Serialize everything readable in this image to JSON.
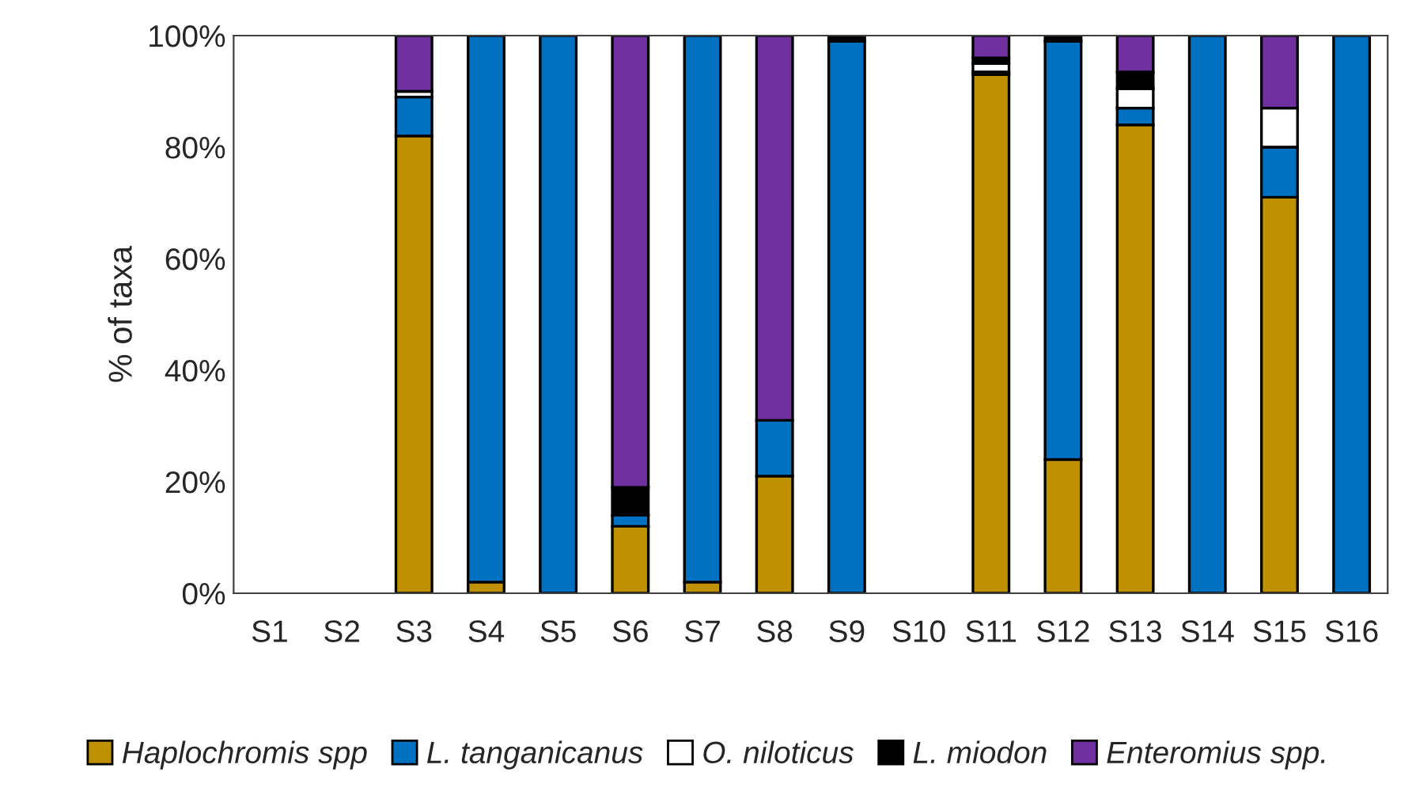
{
  "chart_data": {
    "type": "bar",
    "stacked": true,
    "ylabel": "% of taxa",
    "categories": [
      "S1",
      "S2",
      "S3",
      "S4",
      "S5",
      "S6",
      "S7",
      "S8",
      "S9",
      "S10",
      "S11",
      "S12",
      "S13",
      "S14",
      "S15",
      "S16"
    ],
    "series": [
      {
        "name": "Haplochromis spp",
        "color": "#bf9000",
        "values": [
          0,
          0,
          82,
          2,
          0,
          12,
          2,
          21,
          0,
          0,
          93,
          24,
          84,
          0,
          71,
          null
        ]
      },
      {
        "name": "L. tanganicanus",
        "color": "#0070c0",
        "values": [
          0,
          0,
          7,
          98,
          100,
          2,
          98,
          10,
          99,
          0,
          0.5,
          75,
          3,
          100,
          9,
          100
        ]
      },
      {
        "name": "O. niloticus",
        "color": "#ffffff",
        "values": [
          0,
          0,
          1,
          0,
          0,
          0,
          0,
          0,
          0,
          0,
          1.5,
          0,
          3.5,
          0,
          7,
          0
        ]
      },
      {
        "name": "L. miodon",
        "color": "#000000",
        "values": [
          0,
          0,
          null,
          0,
          0,
          5,
          0,
          null,
          1,
          0,
          1,
          1,
          3,
          0,
          0,
          0
        ]
      },
      {
        "name": "Enteromius spp.",
        "color": "#7030a0",
        "values": [
          0,
          0,
          10,
          0,
          0,
          81,
          0,
          69,
          0,
          0,
          4,
          0,
          6.5,
          0,
          13,
          0
        ]
      }
    ],
    "ylim": [
      0,
      100
    ],
    "yticks": [
      {
        "value": 0,
        "label": "0%"
      },
      {
        "value": 20,
        "label": "20%"
      },
      {
        "value": 40,
        "label": "40%"
      },
      {
        "value": 60,
        "label": "60%"
      },
      {
        "value": 80,
        "label": "80%"
      },
      {
        "value": 100,
        "label": "100%"
      }
    ],
    "grid": false,
    "legend": "bottom"
  }
}
